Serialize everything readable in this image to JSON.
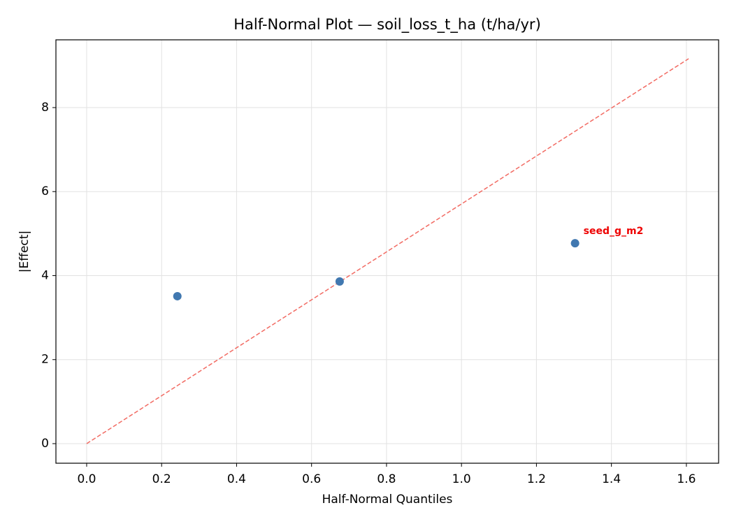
{
  "chart_data": {
    "type": "scatter",
    "title": "Half-Normal Plot — soil_loss_t_ha (t/ha/yr)",
    "x_label": "Half-Normal Quantiles",
    "y_label": "|Effect|",
    "series": [
      {
        "color": "#4178b0",
        "x": [
          0.242,
          0.675,
          1.303
        ],
        "values": [
          3.51,
          3.86,
          4.77
        ],
        "point_labels": [
          null,
          null,
          "seed_g_m2"
        ],
        "point_label_color": "#ee0000"
      }
    ],
    "reference_line": {
      "x": [
        0,
        1.606
      ],
      "y": [
        0,
        9.164
      ],
      "color": "#f26b63",
      "dashed": true
    },
    "xlim": [
      -0.082,
      1.686
    ],
    "ylim": [
      -0.466,
      9.613
    ],
    "xticks": [
      {
        "value": 0,
        "label": "0.0"
      },
      0.2,
      0.4,
      0.6,
      0.8,
      {
        "value": 1,
        "label": "1.0"
      },
      1.2,
      1.4,
      1.6
    ],
    "yticks": [
      0,
      2,
      4,
      6,
      8
    ],
    "grid": true
  }
}
